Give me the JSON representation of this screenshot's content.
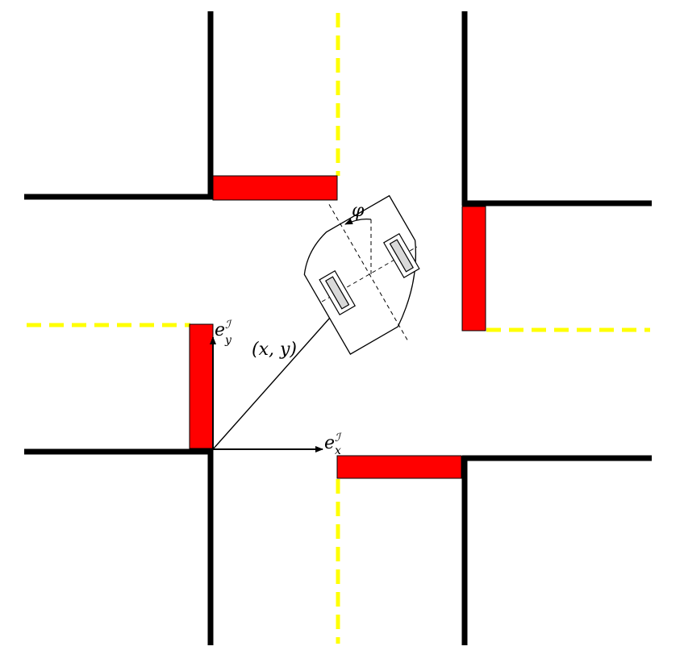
{
  "labels": {
    "position": "(x, y)",
    "heading_angle": "φ",
    "unit_vector_x": {
      "base": "e",
      "superscript": "ℐ",
      "subscript": "x"
    },
    "unit_vector_y": {
      "base": "e",
      "superscript": "ℐ",
      "subscript": "y"
    }
  },
  "colors": {
    "curb": "#000000",
    "stop_line": "#ff0000",
    "lane_divider": "#ffff00",
    "vehicle_body": "#ffffff",
    "wheel": "#d9d9d9",
    "background": "#ffffff"
  },
  "elements": {
    "curbs": 8,
    "stop_lines": 4,
    "lane_dividers": 4,
    "vehicle_wheels": 2
  }
}
